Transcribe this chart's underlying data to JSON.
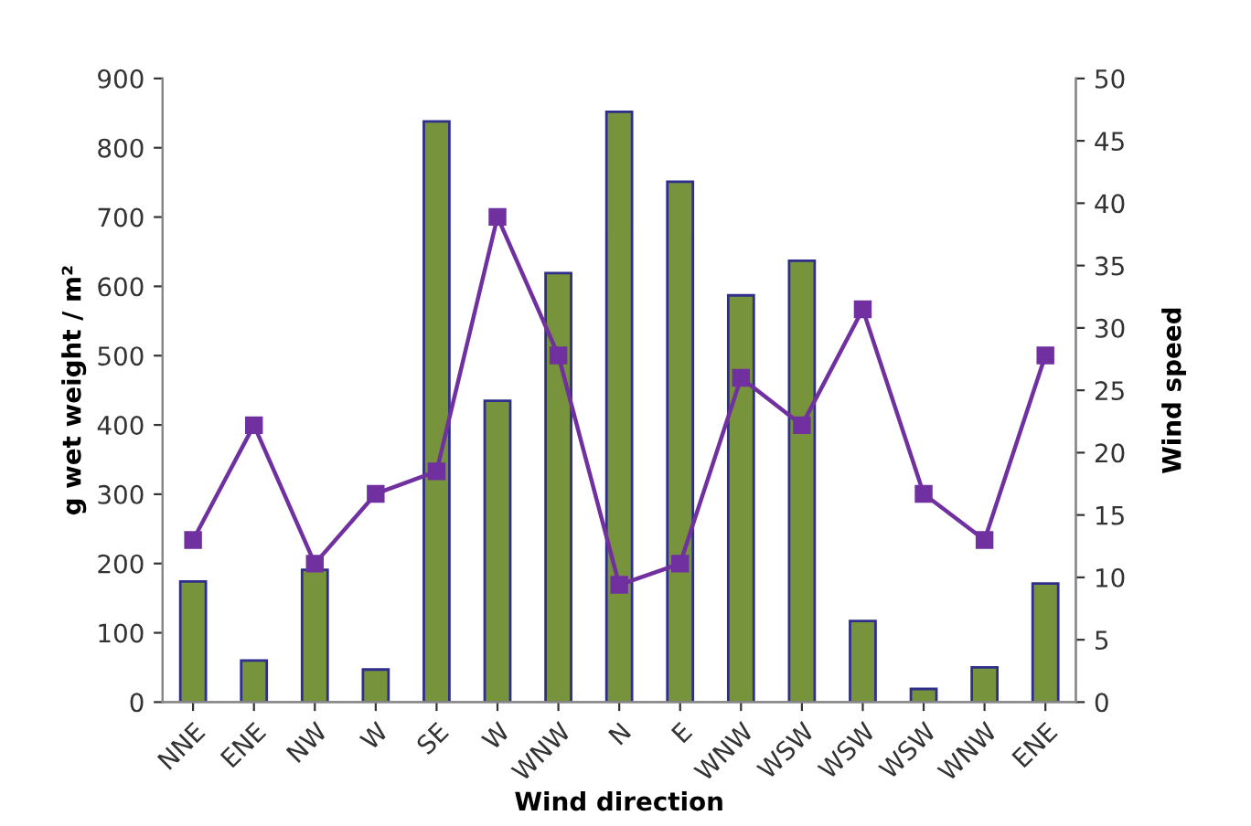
{
  "chart_data": {
    "type": "bar",
    "xlabel": "Wind direction",
    "ylabel": "g wet weight / m²",
    "y2label": "Wind speed",
    "categories": [
      "NNE",
      "ENE",
      "NW",
      "W",
      "SE",
      "W",
      "WNW",
      "N",
      "E",
      "WNW",
      "WSW",
      "WSW",
      "WSW",
      "WNW",
      "ENE"
    ],
    "series": [
      {
        "color": "#77933c",
        "values": [
          174,
          60,
          191,
          47,
          838,
          435,
          619,
          852,
          751,
          587,
          637,
          117,
          19,
          50,
          171
        ]
      },
      {
        "type": "line",
        "axis": "y2",
        "color": "#7030a0",
        "marker": "square",
        "values": [
          13.0,
          22.2,
          11.1,
          16.7,
          18.5,
          38.9,
          27.8,
          9.4,
          11.1,
          26.0,
          22.2,
          31.5,
          16.7,
          13.0,
          27.8
        ]
      }
    ],
    "ylim": [
      0,
      900
    ],
    "yticks": [
      0,
      100,
      200,
      300,
      400,
      500,
      600,
      700,
      800,
      900
    ],
    "y2lim": [
      0,
      50
    ],
    "y2ticks": [
      0,
      5,
      10,
      15,
      20,
      25,
      30,
      35,
      40,
      45,
      50
    ],
    "grid": false,
    "legend": false
  }
}
